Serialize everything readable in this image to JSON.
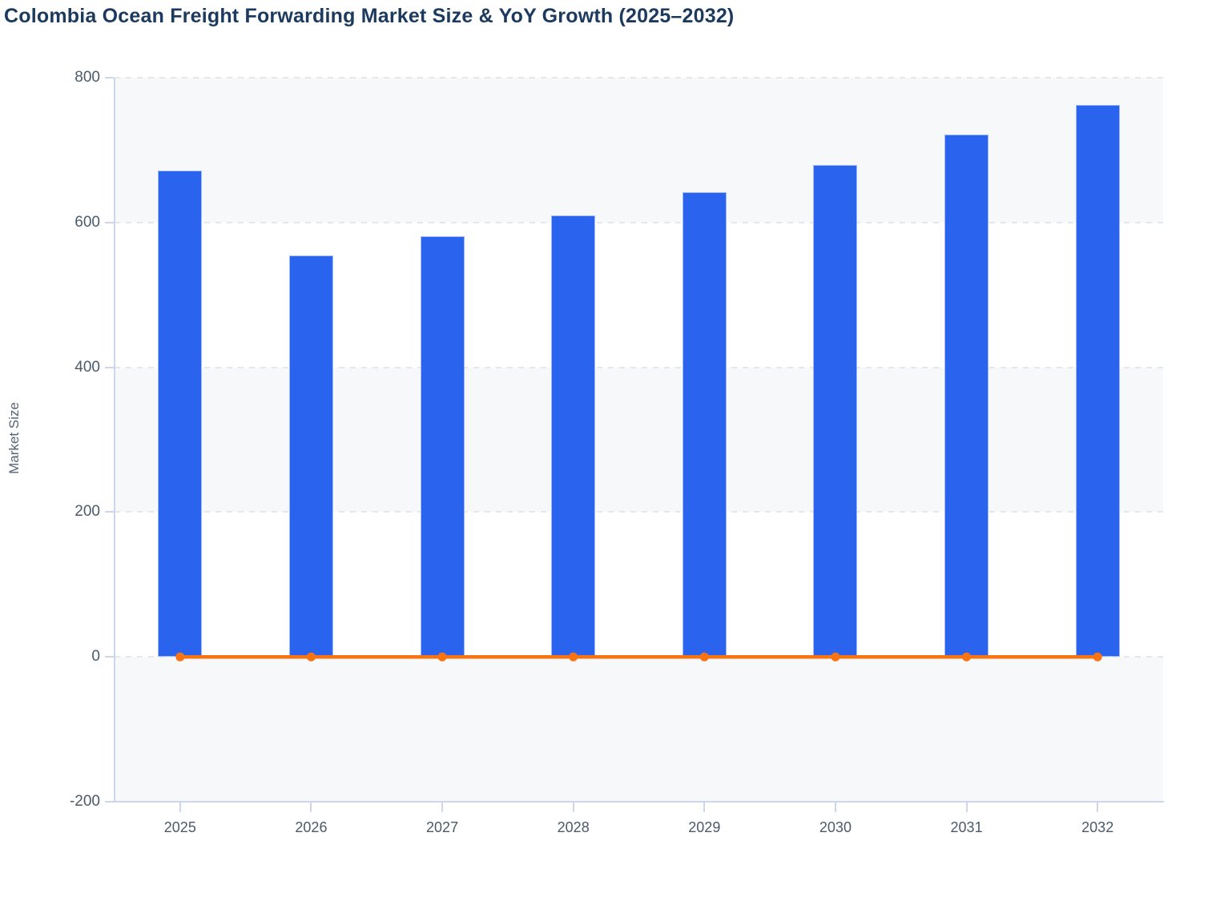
{
  "chart_data": {
    "type": "bar",
    "title": "Colombia Ocean Freight Forwarding Market Size & YoY Growth (2025–2032)",
    "xlabel": "",
    "ylabel": "Market Size",
    "categories": [
      "2025",
      "2026",
      "2027",
      "2028",
      "2029",
      "2030",
      "2031",
      "2032"
    ],
    "series": [
      {
        "name": "Market Size",
        "type": "bar",
        "color": "#2a63ee",
        "values": [
          672,
          554,
          581,
          610,
          642,
          679,
          722,
          762
        ]
      },
      {
        "name": "YoY Growth",
        "type": "line",
        "color": "#f87412",
        "values": [
          0,
          0,
          0,
          0,
          0,
          0,
          0,
          0
        ]
      }
    ],
    "ylim": [
      -200,
      800
    ],
    "y_tick_step": 200,
    "y_tick_labels": [
      "800",
      "600",
      "400",
      "200",
      "0",
      "-200"
    ],
    "grid": "dashed horizontal gridlines, alternating light-gray horizontal bands, no vertical gridlines",
    "legend": "none",
    "colors": {
      "bar_fill": "#2a63ee",
      "bar_border": "#9fb9f6",
      "line": "#f87412",
      "band": "#f7f8fa",
      "axis": "#ccd7ee",
      "gridline": "#e4e7eb",
      "title_text": "#1b3a5e",
      "tick_text": "#4a5a6a"
    }
  }
}
